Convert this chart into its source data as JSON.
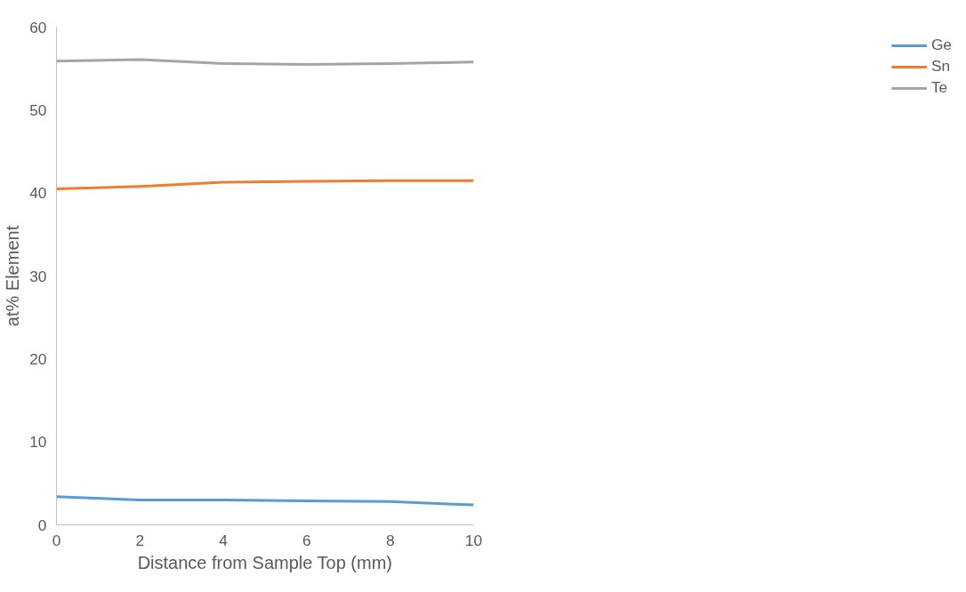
{
  "chart_data": {
    "type": "line",
    "xlabel": "Distance from Sample Top (mm)",
    "ylabel": "at% Element",
    "x": [
      0,
      2,
      4,
      6,
      8,
      10
    ],
    "series": [
      {
        "name": "Ge",
        "color": "#5b9bd5",
        "values": [
          3.4,
          3.0,
          3.0,
          2.9,
          2.8,
          2.4
        ]
      },
      {
        "name": "Sn",
        "color": "#ed7d31",
        "values": [
          40.5,
          40.8,
          41.3,
          41.4,
          41.5,
          41.5
        ]
      },
      {
        "name": "Te",
        "color": "#a5a5a5",
        "values": [
          55.9,
          56.1,
          55.6,
          55.5,
          55.6,
          55.8
        ]
      }
    ],
    "xlim": [
      0,
      10
    ],
    "xticks": [
      0,
      2,
      4,
      6,
      8,
      10
    ],
    "ylim": [
      0,
      60
    ],
    "yticks": [
      0,
      10,
      20,
      30,
      40,
      50,
      60
    ],
    "legend": "right",
    "grid": false,
    "marker": "none",
    "line_style": "solid"
  }
}
